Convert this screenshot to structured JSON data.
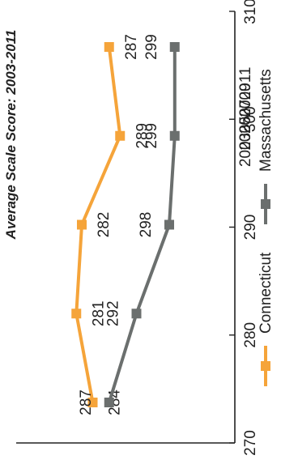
{
  "chart_data": {
    "type": "line",
    "title": "Average Scale Score: 2003-2011",
    "x": [
      "2003",
      "2005",
      "2007",
      "2009",
      "2011"
    ],
    "xlabel": "",
    "ylabel": "",
    "ylim": [
      270,
      310
    ],
    "yticks": [
      270,
      280,
      290,
      300,
      310
    ],
    "grid": false,
    "legend_position": "bottom",
    "orientation": "rotated 90° counter-clockwise",
    "series": [
      {
        "name": "Connecticut",
        "values": [
          284,
          281,
          282,
          289,
          287
        ],
        "color": "#f5a43a",
        "marker": "square"
      },
      {
        "name": "Massachusetts",
        "values": [
          287,
          292,
          298,
          299,
          299
        ],
        "color": "#6b6f6e",
        "marker": "square"
      }
    ]
  }
}
